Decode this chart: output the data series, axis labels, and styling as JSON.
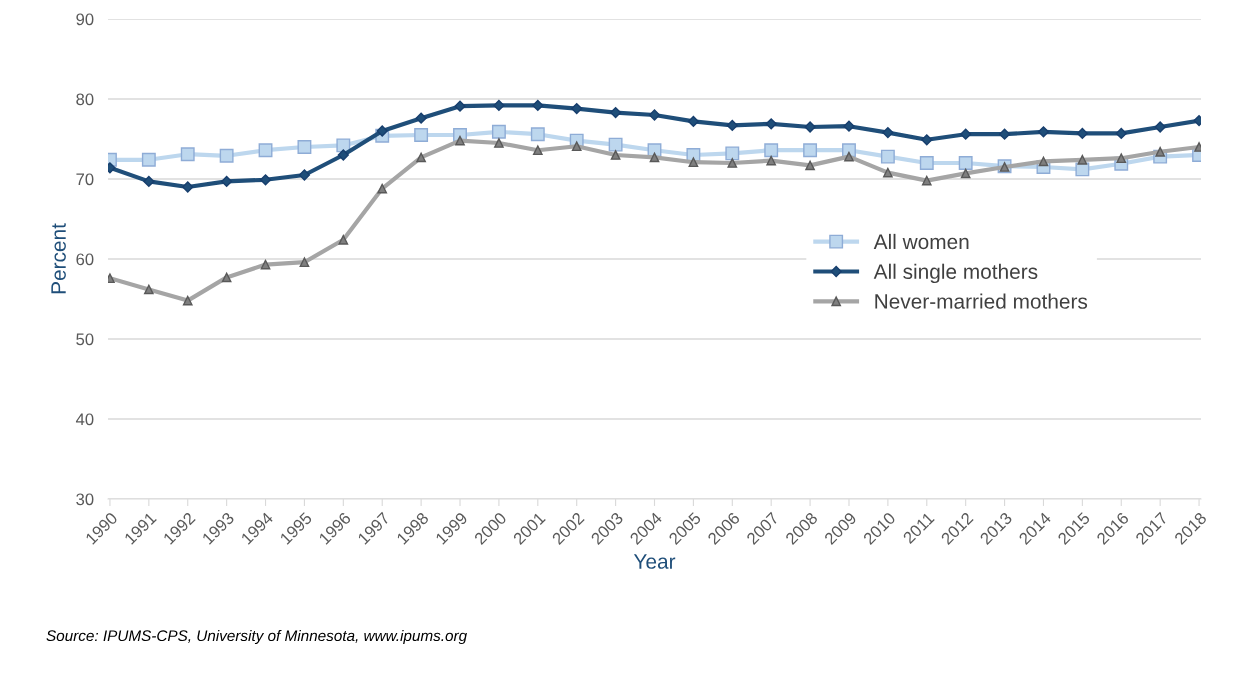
{
  "chart_data": {
    "type": "line",
    "xlabel": "Year",
    "ylabel": "Percent",
    "categories": [
      "1990",
      "1991",
      "1992",
      "1993",
      "1994",
      "1995",
      "1996",
      "1997",
      "1998",
      "1999",
      "2000",
      "2001",
      "2002",
      "2003",
      "2004",
      "2005",
      "2006",
      "2007",
      "2008",
      "2009",
      "2010",
      "2011",
      "2012",
      "2013",
      "2014",
      "2015",
      "2016",
      "2017",
      "2018"
    ],
    "series": [
      {
        "name": "All women",
        "color": "#bdd7ee",
        "marker": "square",
        "values": [
          72.4,
          72.4,
          73.1,
          72.9,
          73.6,
          74.0,
          74.2,
          75.4,
          75.5,
          75.5,
          75.9,
          75.6,
          74.8,
          74.3,
          73.6,
          73.0,
          73.2,
          73.6,
          73.6,
          73.6,
          72.8,
          72.0,
          72.0,
          71.6,
          71.5,
          71.2,
          71.9,
          72.8,
          73.0
        ]
      },
      {
        "name": "All single mothers",
        "color": "#1f4e79",
        "marker": "diamond",
        "values": [
          71.4,
          69.7,
          69.0,
          69.7,
          69.9,
          70.5,
          73.0,
          76.0,
          77.6,
          79.1,
          79.2,
          79.2,
          78.8,
          78.3,
          78.0,
          77.2,
          76.7,
          76.9,
          76.5,
          76.6,
          75.8,
          74.9,
          75.6,
          75.6,
          75.9,
          75.7,
          75.7,
          76.5,
          77.3
        ]
      },
      {
        "name": "Never-married mothers",
        "color": "#a5a5a5",
        "marker": "triangle",
        "values": [
          57.6,
          56.2,
          54.8,
          57.7,
          59.3,
          59.6,
          62.4,
          68.8,
          72.7,
          74.8,
          74.5,
          73.6,
          74.1,
          73.0,
          72.7,
          72.1,
          72.0,
          72.3,
          71.7,
          72.8,
          70.8,
          69.8,
          70.7,
          71.5,
          72.2,
          72.4,
          72.6,
          73.4,
          74.0
        ]
      }
    ],
    "ylim": [
      30,
      90
    ],
    "yticks": [
      30,
      40,
      50,
      60,
      70,
      80,
      90
    ],
    "grid": "y",
    "legend": "right",
    "annotations": [
      "Source: IPUMS-CPS, University of Minnesota, www.ipums.org"
    ]
  }
}
